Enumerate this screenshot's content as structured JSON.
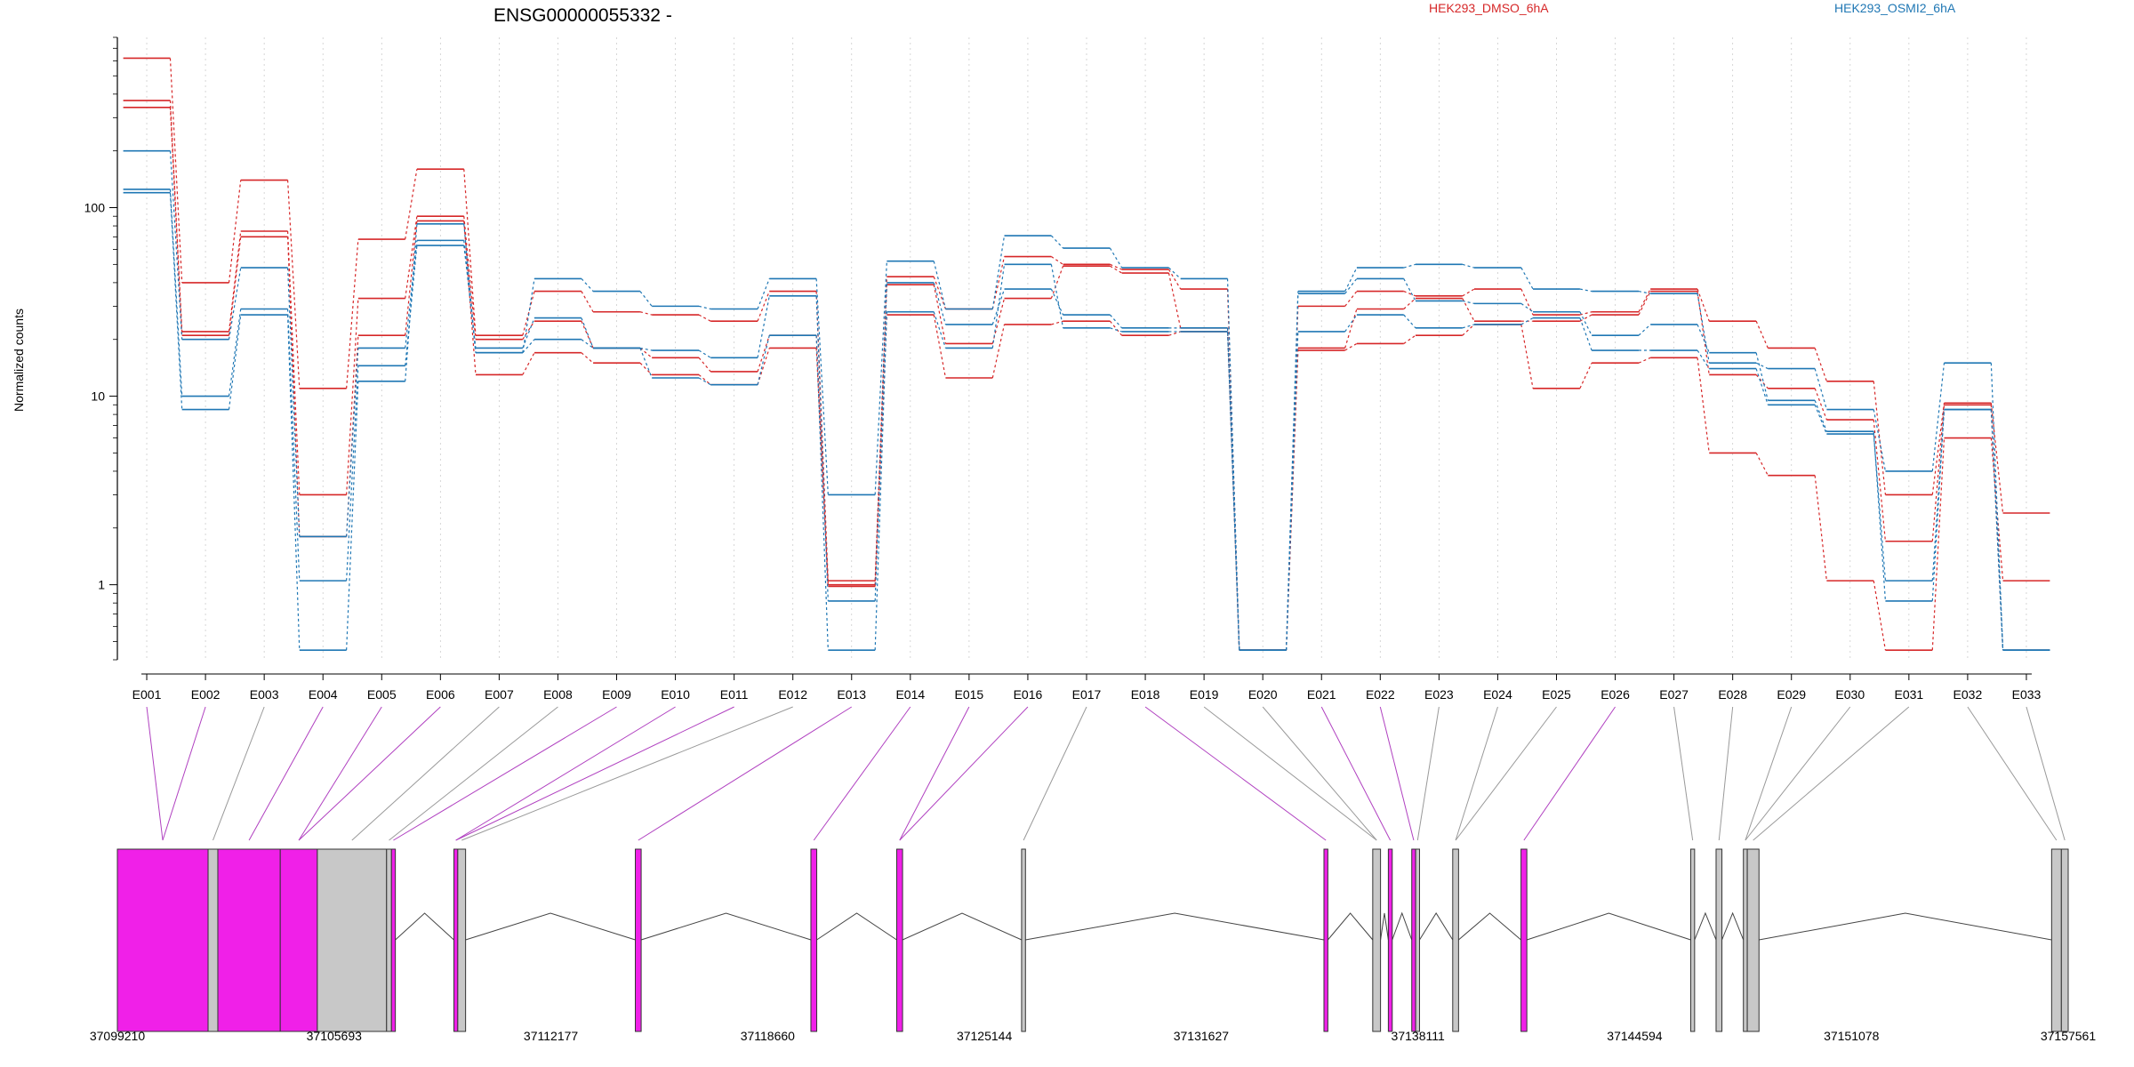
{
  "chart_data": {
    "type": "line",
    "title": "ENSG00000055332 -",
    "ylabel": "Normalized counts",
    "yscale": "log",
    "ylim": [
      0.4,
      800
    ],
    "yticks": [
      1,
      10,
      100
    ],
    "ytick_labels": [
      "1",
      "10",
      "100"
    ],
    "grid": "vertical dotted",
    "legend": [
      "HEK293_DMSO_6hA",
      "HEK293_OSMI2_6hA"
    ],
    "legend_colors": [
      "#d62728",
      "#1f77b4"
    ],
    "categories": [
      "E001",
      "E002",
      "E003",
      "E004",
      "E005",
      "E006",
      "E007",
      "E008",
      "E009",
      "E010",
      "E011",
      "E012",
      "E013",
      "E014",
      "E015",
      "E016",
      "E017",
      "E018",
      "E019",
      "E020",
      "E021",
      "E022",
      "E023",
      "E024",
      "E025",
      "E026",
      "E027",
      "E028",
      "E029",
      "E030",
      "E031",
      "E032",
      "E033"
    ],
    "series": [
      {
        "group": "HEK293_DMSO_6hA",
        "color": "#d62728",
        "values": [
          620,
          40,
          140,
          11,
          68,
          160,
          21,
          36,
          28,
          27,
          25,
          36,
          1.05,
          43,
          29,
          55,
          50,
          47,
          37,
          0.45,
          30,
          36,
          34,
          37,
          27,
          28,
          37,
          25,
          18,
          12,
          3,
          9.2,
          2.4
        ]
      },
      {
        "group": "HEK293_DMSO_6hA",
        "color": "#d62728",
        "values": [
          370,
          22,
          75,
          3,
          33,
          90,
          20,
          25,
          18,
          16,
          13.5,
          21,
          1,
          39,
          19,
          33,
          49,
          45,
          23,
          0.45,
          18,
          29,
          33,
          25,
          25,
          27,
          36,
          13,
          11,
          7.5,
          1.7,
          9,
          0.45
        ]
      },
      {
        "group": "HEK293_DMSO_6hA",
        "color": "#d62728",
        "values": [
          340,
          21,
          70,
          1.8,
          21,
          85,
          13,
          17,
          15,
          13,
          11.5,
          18,
          0.98,
          27,
          12.5,
          24,
          25,
          21,
          22,
          0.45,
          17.5,
          19,
          21,
          24,
          11,
          15,
          16,
          5,
          3.8,
          1.05,
          0.45,
          6,
          1.05
        ]
      },
      {
        "group": "HEK293_OSMI2_6hA",
        "color": "#1f77b4",
        "values": [
          200,
          20,
          48,
          1.8,
          18,
          67,
          17,
          42,
          36,
          30,
          29,
          42,
          3,
          52,
          29,
          71,
          61,
          48,
          42,
          0.45,
          36,
          48,
          50,
          48,
          37,
          36,
          35,
          15,
          14,
          8.5,
          4,
          15,
          0.45
        ]
      },
      {
        "group": "HEK293_OSMI2_6hA",
        "color": "#1f77b4",
        "values": [
          125,
          10,
          29,
          1.05,
          14.5,
          63,
          18,
          26,
          18,
          17.5,
          16,
          34,
          0.82,
          40,
          24,
          37,
          27,
          23,
          23,
          0.45,
          35,
          42,
          32,
          31,
          28,
          21,
          24,
          17,
          9.5,
          6.5,
          0.82,
          8.5,
          0.45
        ]
      },
      {
        "group": "HEK293_OSMI2_6hA",
        "color": "#1f77b4",
        "values": [
          120,
          8.5,
          27,
          0.45,
          12,
          82,
          17,
          20,
          18,
          12.5,
          11.5,
          21,
          0.45,
          28,
          18,
          50,
          23,
          22,
          22,
          0.45,
          22,
          27,
          23,
          24,
          26,
          17.5,
          17.5,
          14,
          9,
          6.3,
          1.05,
          8.5,
          0.45
        ]
      }
    ],
    "gene_track": {
      "start_label": "37099210",
      "coordinate_labels": [
        "37099210",
        "37105693",
        "37112177",
        "37118660",
        "37125144",
        "37131627",
        "37138111",
        "37144594",
        "37151078",
        "37157561"
      ],
      "exons": [
        {
          "id": "E001",
          "start": 0,
          "end": 0.0465,
          "color": "#f020e8"
        },
        {
          "id": "E002",
          "start": 0.0465,
          "end": 0.0515,
          "color": "#c8c8c8"
        },
        {
          "id": "E003",
          "start": 0.0515,
          "end": 0.0835,
          "color": "#f020e8"
        },
        {
          "id": "E004",
          "start": 0.0835,
          "end": 0.1025,
          "color": "#f020e8"
        },
        {
          "id": "E005",
          "start": 0.1025,
          "end": 0.138,
          "color": "#c8c8c8"
        },
        {
          "id": "E006",
          "start": 0.138,
          "end": 0.1405,
          "color": "#c8c8c8"
        },
        {
          "id": "E007",
          "start": 0.1405,
          "end": 0.1425,
          "color": "#f020e8"
        },
        {
          "id": "E008",
          "start": 0.1725,
          "end": 0.1745,
          "color": "#f020e8"
        },
        {
          "id": "E009",
          "start": 0.1745,
          "end": 0.1785,
          "color": "#c8c8c8"
        },
        {
          "id": "E010",
          "start": 0.2655,
          "end": 0.2685,
          "color": "#f020e8"
        },
        {
          "id": "E011",
          "start": 0.3555,
          "end": 0.3585,
          "color": "#f020e8"
        },
        {
          "id": "E012",
          "start": 0.3995,
          "end": 0.4025,
          "color": "#f020e8"
        },
        {
          "id": "E013",
          "start": 0.4635,
          "end": 0.4655,
          "color": "#c8c8c8"
        },
        {
          "id": "E014",
          "start": 0.6185,
          "end": 0.6205,
          "color": "#f020e8"
        },
        {
          "id": "E015",
          "start": 0.6435,
          "end": 0.6475,
          "color": "#c8c8c8"
        },
        {
          "id": "E016",
          "start": 0.6515,
          "end": 0.6535,
          "color": "#f020e8"
        },
        {
          "id": "E017",
          "start": 0.6635,
          "end": 0.6655,
          "color": "#f020e8"
        },
        {
          "id": "E018",
          "start": 0.6655,
          "end": 0.6675,
          "color": "#c8c8c8"
        },
        {
          "id": "E019",
          "start": 0.6845,
          "end": 0.6875,
          "color": "#c8c8c8"
        },
        {
          "id": "E020",
          "start": 0.7195,
          "end": 0.7225,
          "color": "#f020e8"
        },
        {
          "id": "E021",
          "start": 0.8065,
          "end": 0.8085,
          "color": "#c8c8c8"
        },
        {
          "id": "E022",
          "start": 0.8195,
          "end": 0.8225,
          "color": "#c8c8c8"
        },
        {
          "id": "E023",
          "start": 0.8335,
          "end": 0.8355,
          "color": "#c8c8c8"
        },
        {
          "id": "E024",
          "start": 0.8355,
          "end": 0.8415,
          "color": "#c8c8c8"
        },
        {
          "id": "E025",
          "start": 0.9915,
          "end": 0.9965,
          "color": "#c8c8c8"
        },
        {
          "id": "E026",
          "start": 0.9965,
          "end": 1.0,
          "color": "#c8c8c8"
        }
      ]
    }
  }
}
